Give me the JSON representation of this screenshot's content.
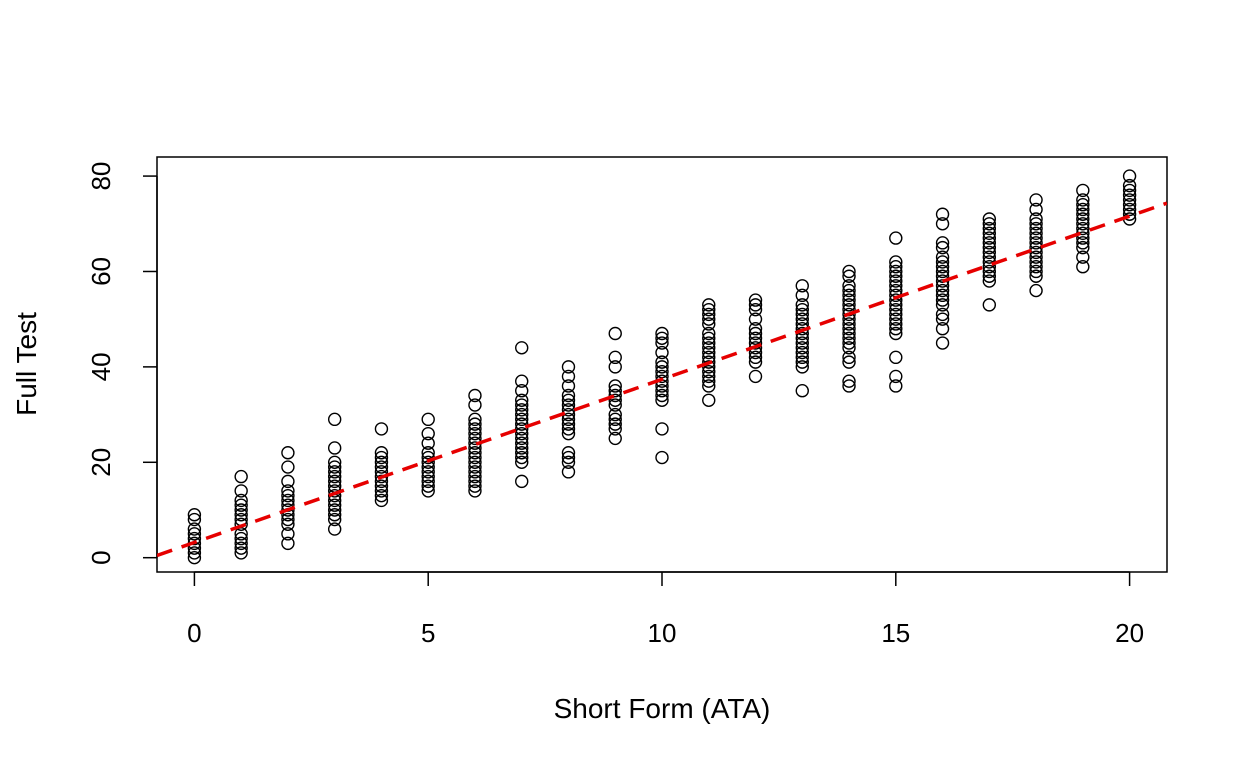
{
  "chart_data": {
    "type": "scatter",
    "title": "",
    "xlabel": "Short Form (ATA)",
    "ylabel": "Full Test",
    "xlim": [
      -0.8,
      20.8
    ],
    "ylim": [
      -3,
      84
    ],
    "x_ticks": [
      0,
      5,
      10,
      15,
      20
    ],
    "y_ticks": [
      0,
      20,
      40,
      60,
      80
    ],
    "grid": false,
    "legend": "none",
    "colors": {
      "points": "#000000",
      "fit_line": "#e60000"
    },
    "series": [
      {
        "points": [
          [
            0,
            0
          ],
          [
            0,
            1
          ],
          [
            0,
            2
          ],
          [
            0,
            3
          ],
          [
            0,
            4
          ],
          [
            0,
            5
          ],
          [
            0,
            6
          ],
          [
            0,
            8
          ],
          [
            0,
            9
          ],
          [
            1,
            1
          ],
          [
            1,
            2
          ],
          [
            1,
            3
          ],
          [
            1,
            4
          ],
          [
            1,
            5
          ],
          [
            1,
            7
          ],
          [
            1,
            8
          ],
          [
            1,
            9
          ],
          [
            1,
            10
          ],
          [
            1,
            11
          ],
          [
            1,
            12
          ],
          [
            1,
            14
          ],
          [
            1,
            17
          ],
          [
            2,
            3
          ],
          [
            2,
            5
          ],
          [
            2,
            7
          ],
          [
            2,
            8
          ],
          [
            2,
            9
          ],
          [
            2,
            10
          ],
          [
            2,
            11
          ],
          [
            2,
            12
          ],
          [
            2,
            13
          ],
          [
            2,
            14
          ],
          [
            2,
            16
          ],
          [
            2,
            19
          ],
          [
            2,
            22
          ],
          [
            3,
            6
          ],
          [
            3,
            8
          ],
          [
            3,
            9
          ],
          [
            3,
            10
          ],
          [
            3,
            11
          ],
          [
            3,
            12
          ],
          [
            3,
            13
          ],
          [
            3,
            14
          ],
          [
            3,
            15
          ],
          [
            3,
            16
          ],
          [
            3,
            17
          ],
          [
            3,
            18
          ],
          [
            3,
            19
          ],
          [
            3,
            20
          ],
          [
            3,
            23
          ],
          [
            3,
            29
          ],
          [
            4,
            12
          ],
          [
            4,
            13
          ],
          [
            4,
            14
          ],
          [
            4,
            15
          ],
          [
            4,
            16
          ],
          [
            4,
            17
          ],
          [
            4,
            18
          ],
          [
            4,
            19
          ],
          [
            4,
            20
          ],
          [
            4,
            21
          ],
          [
            4,
            22
          ],
          [
            4,
            27
          ],
          [
            5,
            14
          ],
          [
            5,
            15
          ],
          [
            5,
            16
          ],
          [
            5,
            17
          ],
          [
            5,
            18
          ],
          [
            5,
            19
          ],
          [
            5,
            20
          ],
          [
            5,
            21
          ],
          [
            5,
            22
          ],
          [
            5,
            24
          ],
          [
            5,
            26
          ],
          [
            5,
            29
          ],
          [
            6,
            14
          ],
          [
            6,
            15
          ],
          [
            6,
            16
          ],
          [
            6,
            17
          ],
          [
            6,
            18
          ],
          [
            6,
            19
          ],
          [
            6,
            20
          ],
          [
            6,
            21
          ],
          [
            6,
            22
          ],
          [
            6,
            23
          ],
          [
            6,
            24
          ],
          [
            6,
            25
          ],
          [
            6,
            26
          ],
          [
            6,
            27
          ],
          [
            6,
            28
          ],
          [
            6,
            29
          ],
          [
            6,
            32
          ],
          [
            6,
            34
          ],
          [
            7,
            16
          ],
          [
            7,
            20
          ],
          [
            7,
            21
          ],
          [
            7,
            22
          ],
          [
            7,
            23
          ],
          [
            7,
            24
          ],
          [
            7,
            25
          ],
          [
            7,
            26
          ],
          [
            7,
            27
          ],
          [
            7,
            28
          ],
          [
            7,
            29
          ],
          [
            7,
            30
          ],
          [
            7,
            31
          ],
          [
            7,
            32
          ],
          [
            7,
            33
          ],
          [
            7,
            35
          ],
          [
            7,
            37
          ],
          [
            7,
            44
          ],
          [
            8,
            18
          ],
          [
            8,
            20
          ],
          [
            8,
            21
          ],
          [
            8,
            22
          ],
          [
            8,
            26
          ],
          [
            8,
            27
          ],
          [
            8,
            28
          ],
          [
            8,
            29
          ],
          [
            8,
            30
          ],
          [
            8,
            31
          ],
          [
            8,
            32
          ],
          [
            8,
            33
          ],
          [
            8,
            34
          ],
          [
            8,
            36
          ],
          [
            8,
            38
          ],
          [
            8,
            40
          ],
          [
            9,
            25
          ],
          [
            9,
            27
          ],
          [
            9,
            28
          ],
          [
            9,
            29
          ],
          [
            9,
            30
          ],
          [
            9,
            32
          ],
          [
            9,
            33
          ],
          [
            9,
            34
          ],
          [
            9,
            35
          ],
          [
            9,
            36
          ],
          [
            9,
            40
          ],
          [
            9,
            42
          ],
          [
            9,
            47
          ],
          [
            10,
            21
          ],
          [
            10,
            27
          ],
          [
            10,
            33
          ],
          [
            10,
            34
          ],
          [
            10,
            35
          ],
          [
            10,
            36
          ],
          [
            10,
            37
          ],
          [
            10,
            38
          ],
          [
            10,
            39
          ],
          [
            10,
            40
          ],
          [
            10,
            41
          ],
          [
            10,
            43
          ],
          [
            10,
            45
          ],
          [
            10,
            46
          ],
          [
            10,
            47
          ],
          [
            11,
            33
          ],
          [
            11,
            36
          ],
          [
            11,
            37
          ],
          [
            11,
            38
          ],
          [
            11,
            39
          ],
          [
            11,
            40
          ],
          [
            11,
            41
          ],
          [
            11,
            42
          ],
          [
            11,
            43
          ],
          [
            11,
            44
          ],
          [
            11,
            45
          ],
          [
            11,
            46
          ],
          [
            11,
            47
          ],
          [
            11,
            49
          ],
          [
            11,
            50
          ],
          [
            11,
            51
          ],
          [
            11,
            52
          ],
          [
            11,
            53
          ],
          [
            12,
            38
          ],
          [
            12,
            41
          ],
          [
            12,
            42
          ],
          [
            12,
            43
          ],
          [
            12,
            44
          ],
          [
            12,
            45
          ],
          [
            12,
            46
          ],
          [
            12,
            47
          ],
          [
            12,
            48
          ],
          [
            12,
            50
          ],
          [
            12,
            52
          ],
          [
            12,
            53
          ],
          [
            12,
            54
          ],
          [
            13,
            35
          ],
          [
            13,
            40
          ],
          [
            13,
            41
          ],
          [
            13,
            42
          ],
          [
            13,
            43
          ],
          [
            13,
            44
          ],
          [
            13,
            45
          ],
          [
            13,
            46
          ],
          [
            13,
            47
          ],
          [
            13,
            48
          ],
          [
            13,
            49
          ],
          [
            13,
            50
          ],
          [
            13,
            51
          ],
          [
            13,
            52
          ],
          [
            13,
            53
          ],
          [
            13,
            55
          ],
          [
            13,
            57
          ],
          [
            14,
            36
          ],
          [
            14,
            37
          ],
          [
            14,
            41
          ],
          [
            14,
            42
          ],
          [
            14,
            44
          ],
          [
            14,
            45
          ],
          [
            14,
            46
          ],
          [
            14,
            47
          ],
          [
            14,
            48
          ],
          [
            14,
            49
          ],
          [
            14,
            50
          ],
          [
            14,
            51
          ],
          [
            14,
            52
          ],
          [
            14,
            53
          ],
          [
            14,
            54
          ],
          [
            14,
            55
          ],
          [
            14,
            56
          ],
          [
            14,
            57
          ],
          [
            14,
            59
          ],
          [
            14,
            60
          ],
          [
            15,
            36
          ],
          [
            15,
            38
          ],
          [
            15,
            42
          ],
          [
            15,
            47
          ],
          [
            15,
            48
          ],
          [
            15,
            49
          ],
          [
            15,
            50
          ],
          [
            15,
            51
          ],
          [
            15,
            52
          ],
          [
            15,
            53
          ],
          [
            15,
            54
          ],
          [
            15,
            55
          ],
          [
            15,
            56
          ],
          [
            15,
            57
          ],
          [
            15,
            58
          ],
          [
            15,
            59
          ],
          [
            15,
            60
          ],
          [
            15,
            61
          ],
          [
            15,
            62
          ],
          [
            15,
            67
          ],
          [
            16,
            45
          ],
          [
            16,
            48
          ],
          [
            16,
            50
          ],
          [
            16,
            51
          ],
          [
            16,
            53
          ],
          [
            16,
            54
          ],
          [
            16,
            55
          ],
          [
            16,
            56
          ],
          [
            16,
            57
          ],
          [
            16,
            58
          ],
          [
            16,
            59
          ],
          [
            16,
            60
          ],
          [
            16,
            61
          ],
          [
            16,
            62
          ],
          [
            16,
            63
          ],
          [
            16,
            65
          ],
          [
            16,
            66
          ],
          [
            16,
            70
          ],
          [
            16,
            72
          ],
          [
            17,
            53
          ],
          [
            17,
            58
          ],
          [
            17,
            59
          ],
          [
            17,
            60
          ],
          [
            17,
            61
          ],
          [
            17,
            62
          ],
          [
            17,
            63
          ],
          [
            17,
            64
          ],
          [
            17,
            65
          ],
          [
            17,
            66
          ],
          [
            17,
            67
          ],
          [
            17,
            68
          ],
          [
            17,
            69
          ],
          [
            17,
            70
          ],
          [
            17,
            71
          ],
          [
            18,
            56
          ],
          [
            18,
            59
          ],
          [
            18,
            60
          ],
          [
            18,
            61
          ],
          [
            18,
            62
          ],
          [
            18,
            63
          ],
          [
            18,
            64
          ],
          [
            18,
            65
          ],
          [
            18,
            66
          ],
          [
            18,
            67
          ],
          [
            18,
            68
          ],
          [
            18,
            69
          ],
          [
            18,
            70
          ],
          [
            18,
            71
          ],
          [
            18,
            73
          ],
          [
            18,
            75
          ],
          [
            19,
            61
          ],
          [
            19,
            63
          ],
          [
            19,
            65
          ],
          [
            19,
            66
          ],
          [
            19,
            67
          ],
          [
            19,
            68
          ],
          [
            19,
            69
          ],
          [
            19,
            70
          ],
          [
            19,
            71
          ],
          [
            19,
            72
          ],
          [
            19,
            73
          ],
          [
            19,
            74
          ],
          [
            19,
            75
          ],
          [
            19,
            77
          ],
          [
            20,
            71
          ],
          [
            20,
            72
          ],
          [
            20,
            73
          ],
          [
            20,
            74
          ],
          [
            20,
            75
          ],
          [
            20,
            76
          ],
          [
            20,
            77
          ],
          [
            20,
            78
          ],
          [
            20,
            80
          ]
        ]
      }
    ],
    "fit_line": {
      "style": "dashed",
      "intercept": 3.2,
      "slope": 3.42
    }
  }
}
